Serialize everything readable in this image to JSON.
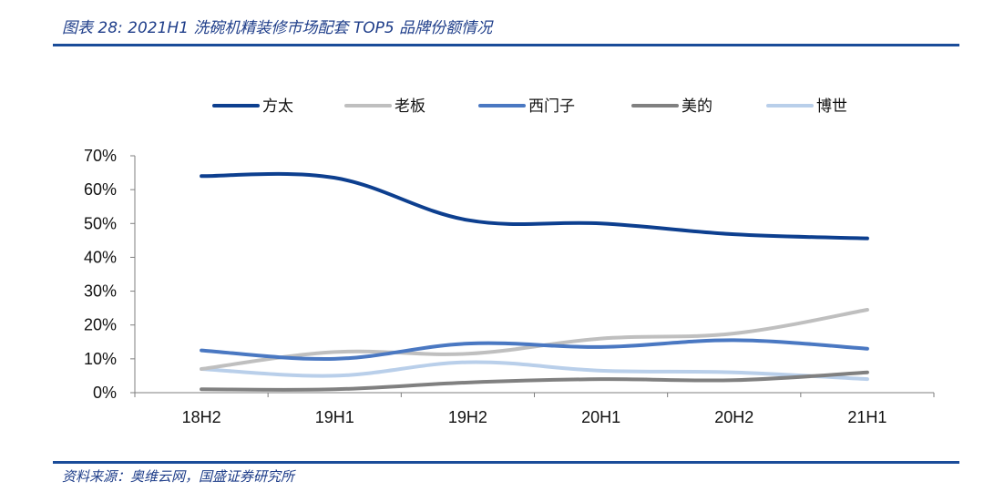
{
  "header": {
    "title": "图表 28: 2021H1 洗碗机精装修市场配套 TOP5 品牌份额情况"
  },
  "footer": {
    "source": "资料来源：奥维云网，国盛证券研究所"
  },
  "chart_data": {
    "type": "line",
    "categories": [
      "18H2",
      "19H1",
      "19H2",
      "20H1",
      "20H2",
      "21H1"
    ],
    "ylim": [
      0,
      70
    ],
    "yticks": [
      "0%",
      "10%",
      "20%",
      "30%",
      "40%",
      "50%",
      "60%",
      "70%"
    ],
    "grid": false,
    "legend_position": "top",
    "series": [
      {
        "name": "方太",
        "color": "#0d3f8f",
        "values": [
          64,
          63.5,
          51,
          50,
          46.8,
          45.6
        ]
      },
      {
        "name": "老板",
        "color": "#bfbfbf",
        "values": [
          7,
          12,
          11.5,
          16,
          17.5,
          24.5
        ]
      },
      {
        "name": "西门子",
        "color": "#4a78c2",
        "values": [
          12.5,
          10,
          14.5,
          13.5,
          15.5,
          13
        ]
      },
      {
        "name": "美的",
        "color": "#808080",
        "values": [
          1,
          1,
          3,
          4,
          3.7,
          6
        ]
      },
      {
        "name": "博世",
        "color": "#b9cfea",
        "values": [
          7,
          5,
          9,
          6.5,
          6,
          4
        ]
      }
    ]
  }
}
